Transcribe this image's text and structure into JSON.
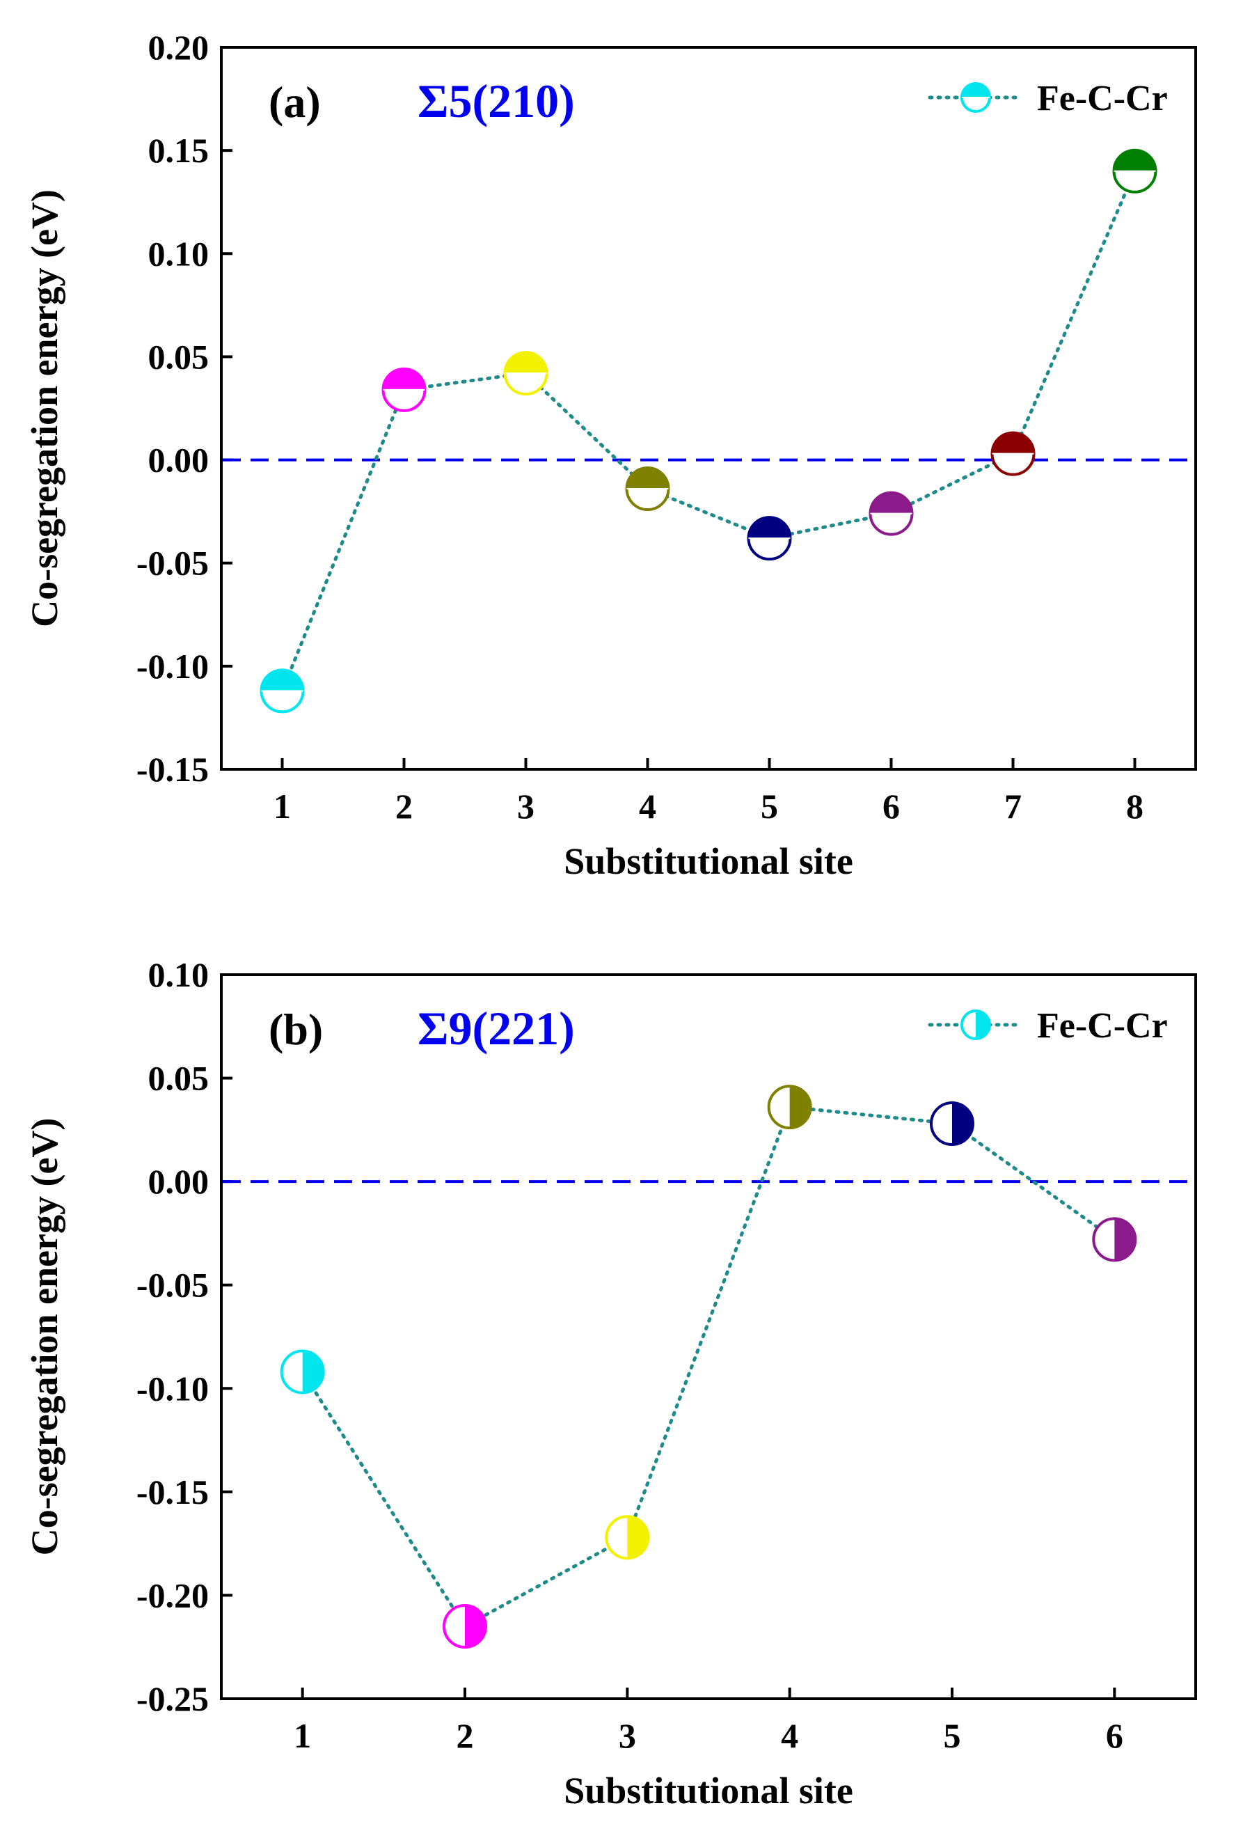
{
  "chart_data": [
    {
      "type": "line",
      "panel_label": "(a)",
      "title": "Σ5(210)",
      "title_color": "#0000ee",
      "xlabel": "Substitutional site",
      "ylabel": "Co-segregation energy (eV)",
      "x": [
        1,
        2,
        3,
        4,
        5,
        6,
        7,
        8
      ],
      "xticks": [
        "1",
        "2",
        "3",
        "4",
        "5",
        "6",
        "7",
        "8"
      ],
      "xlim": [
        0.5,
        8.5
      ],
      "ylim": [
        -0.15,
        0.2
      ],
      "yticks": [
        "-0.15",
        "-0.10",
        "-0.05",
        "0.00",
        "0.05",
        "0.10",
        "0.15",
        "0.20"
      ],
      "ytick_values": [
        -0.15,
        -0.1,
        -0.05,
        0,
        0.05,
        0.1,
        0.15,
        0.2
      ],
      "reference_line": 0,
      "marker_fill": "top-half",
      "line_color": "#1f8a8a",
      "reference_color": "#0000ee",
      "legend": "top-right",
      "series": [
        {
          "name": "Fe-C-Cr",
          "values": [
            -0.112,
            0.034,
            0.042,
            -0.014,
            -0.038,
            -0.026,
            0.003,
            0.14
          ],
          "colors": [
            "#00e5ee",
            "#ff00ff",
            "#f2f200",
            "#808000",
            "#000080",
            "#8b1a8b",
            "#8b0000",
            "#008000"
          ],
          "legend_color": "#00e5ee"
        }
      ]
    },
    {
      "type": "line",
      "panel_label": "(b)",
      "title": "Σ9(221)",
      "title_color": "#0000ee",
      "xlabel": "Substitutional site",
      "ylabel": "Co-segregation energy (eV)",
      "x": [
        1,
        2,
        3,
        4,
        5,
        6
      ],
      "xticks": [
        "1",
        "2",
        "3",
        "4",
        "5",
        "6"
      ],
      "xlim": [
        0.5,
        6.5
      ],
      "ylim": [
        -0.25,
        0.1
      ],
      "yticks": [
        "-0.25",
        "-0.20",
        "-0.15",
        "-0.10",
        "-0.05",
        "0.00",
        "0.05",
        "0.10"
      ],
      "ytick_values": [
        -0.25,
        -0.2,
        -0.15,
        -0.1,
        -0.05,
        0,
        0.05,
        0.1
      ],
      "reference_line": 0,
      "marker_fill": "right-half",
      "line_color": "#1f8a8a",
      "reference_color": "#0000ee",
      "legend": "top-right",
      "series": [
        {
          "name": "Fe-C-Cr",
          "values": [
            -0.092,
            -0.215,
            -0.172,
            0.036,
            0.028,
            -0.028
          ],
          "colors": [
            "#00e5ee",
            "#ff00ff",
            "#f2f200",
            "#808000",
            "#000080",
            "#8b1a8b"
          ],
          "legend_color": "#00e5ee"
        }
      ]
    }
  ]
}
